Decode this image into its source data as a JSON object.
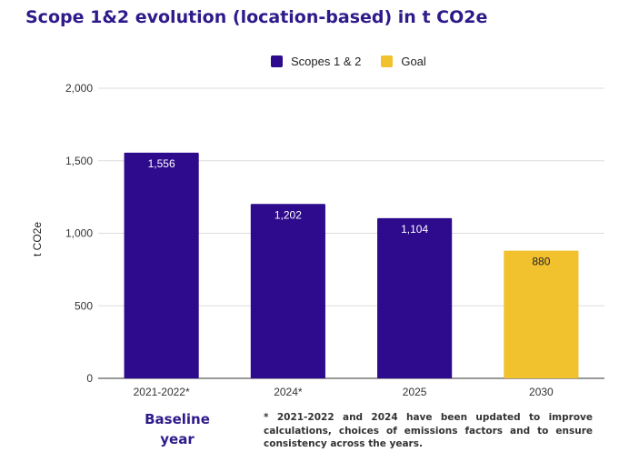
{
  "title": "Scope 1&2 evolution (location-based) in t CO2e",
  "baseline_label": "Baseline year",
  "footnote": "* 2021-2022 and 2024 have been updated to improve calculations, choices of emissions factors and to ensure consistency across the years.",
  "colors": {
    "title": "#2e1a8a",
    "scopes": "#2e0a8c",
    "goal": "#f2c12e",
    "grid": "#dddddd",
    "axis": "#333333"
  },
  "legend": [
    {
      "label": "Scopes 1 & 2",
      "color": "#2e0a8c"
    },
    {
      "label": "Goal",
      "color": "#f2c12e"
    }
  ],
  "chart_data": {
    "type": "bar",
    "categories": [
      "2021-2022*",
      "2024*",
      "2025",
      "2030"
    ],
    "series": [
      {
        "name": "Scopes 1 & 2",
        "values": [
          1556,
          1202,
          1104,
          null
        ],
        "color": "#2e0a8c",
        "label_color": "#ffffff"
      },
      {
        "name": "Goal",
        "values": [
          null,
          null,
          null,
          880
        ],
        "color": "#f2c12e",
        "label_color": "#222222"
      }
    ],
    "data_labels": [
      "1,556",
      "1,202",
      "1,104",
      "880"
    ],
    "ylabel": "t CO2e",
    "ylim": [
      0,
      2000
    ],
    "yticks": [
      0,
      500,
      1000,
      1500,
      2000
    ],
    "ytick_labels": [
      "0",
      "500",
      "1,000",
      "1,500",
      "2,000"
    ],
    "grid": true,
    "legend_position": "top"
  }
}
